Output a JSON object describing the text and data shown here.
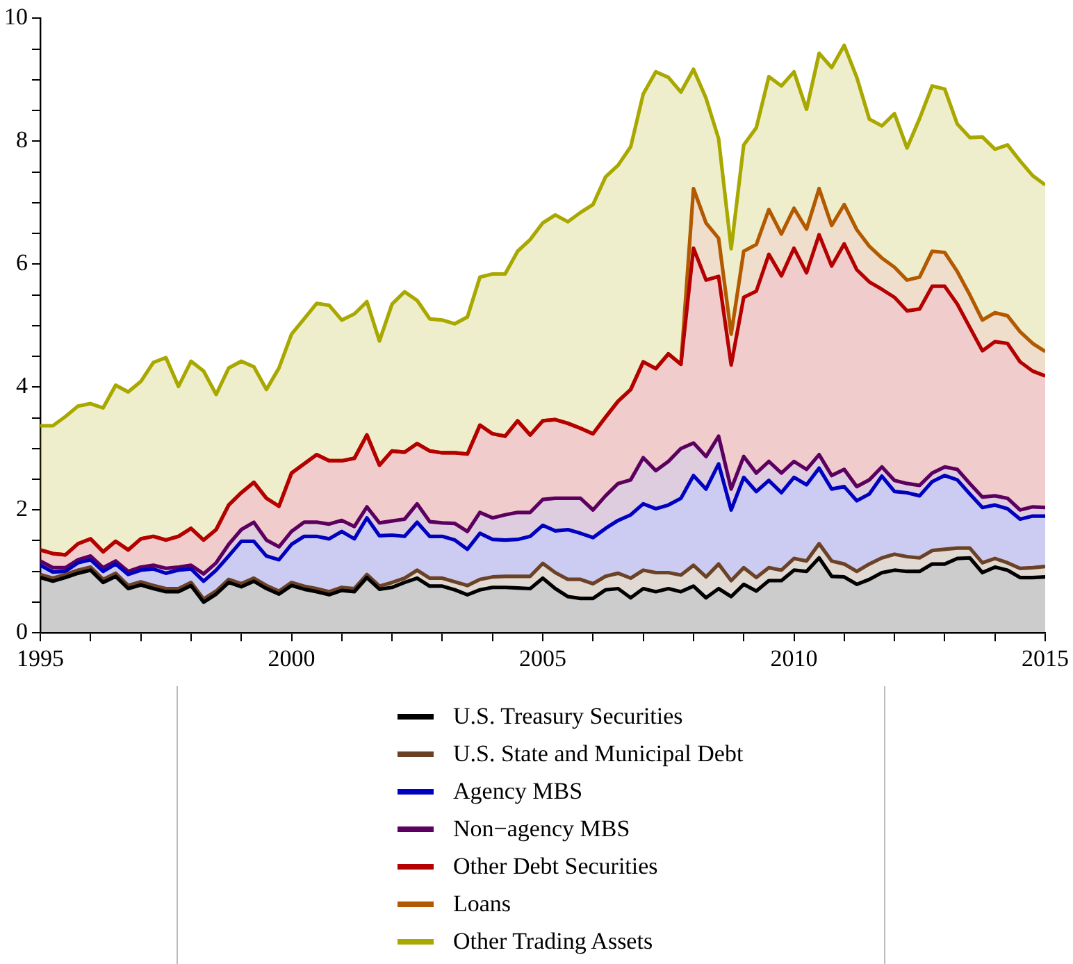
{
  "chart_data": {
    "type": "area",
    "stacked": true,
    "legend": "bottom",
    "grid": false,
    "marker": "none",
    "xlim": [
      1995,
      2015
    ],
    "xticks": [
      1995,
      {
        "value": 1996,
        "label": null
      },
      {
        "value": 1997,
        "label": null
      },
      {
        "value": 1998,
        "label": null
      },
      {
        "value": 1999,
        "label": null
      },
      2000,
      {
        "value": 2001,
        "label": null
      },
      {
        "value": 2002,
        "label": null
      },
      {
        "value": 2003,
        "label": null
      },
      {
        "value": 2004,
        "label": null
      },
      2005,
      {
        "value": 2006,
        "label": null
      },
      {
        "value": 2007,
        "label": null
      },
      {
        "value": 2008,
        "label": null
      },
      {
        "value": 2009,
        "label": null
      },
      2010,
      {
        "value": 2011,
        "label": null
      },
      {
        "value": 2012,
        "label": null
      },
      {
        "value": 2013,
        "label": null
      },
      {
        "value": 2014,
        "label": null
      },
      2015
    ],
    "ylim": [
      0,
      10
    ],
    "yticks": [
      0,
      {
        "value": 0.5,
        "label": null
      },
      {
        "value": 1,
        "label": null
      },
      {
        "value": 1.5,
        "label": null
      },
      2,
      {
        "value": 2.5,
        "label": null
      },
      {
        "value": 3,
        "label": null
      },
      {
        "value": 3.5,
        "label": null
      },
      4,
      {
        "value": 4.5,
        "label": null
      },
      {
        "value": 5,
        "label": null
      },
      {
        "value": 5.5,
        "label": null
      },
      6,
      {
        "value": 6.5,
        "label": null
      },
      {
        "value": 7,
        "label": null
      },
      {
        "value": 7.5,
        "label": null
      },
      8,
      {
        "value": 8.5,
        "label": null
      },
      {
        "value": 9,
        "label": null
      },
      {
        "value": 9.5,
        "label": null
      },
      10
    ],
    "x": [
      1995,
      1995.25,
      1995.5,
      1995.75,
      1996,
      1996.25,
      1996.5,
      1996.75,
      1997,
      1997.25,
      1997.5,
      1997.75,
      1998,
      1998.25,
      1998.5,
      1998.75,
      1999,
      1999.25,
      1999.5,
      1999.75,
      2000,
      2000.25,
      2000.5,
      2000.75,
      2001,
      2001.25,
      2001.5,
      2001.75,
      2002,
      2002.25,
      2002.5,
      2002.75,
      2003,
      2003.25,
      2003.5,
      2003.75,
      2004,
      2004.25,
      2004.5,
      2004.75,
      2005,
      2005.25,
      2005.5,
      2005.75,
      2006,
      2006.25,
      2006.5,
      2006.75,
      2007,
      2007.25,
      2007.5,
      2007.75,
      2008,
      2008.25,
      2008.5,
      2008.75,
      2009,
      2009.25,
      2009.5,
      2009.75,
      2010,
      2010.25,
      2010.5,
      2010.75,
      2011,
      2011.25,
      2011.5,
      2011.75,
      2012,
      2012.25,
      2012.5,
      2012.75,
      2013,
      2013.25,
      2013.5,
      2013.75,
      2014,
      2014.25,
      2014.5,
      2014.75,
      2015
    ],
    "series": [
      {
        "name": "U.S. Treasury Securities",
        "color": "#000000",
        "values": [
          0.9,
          0.84,
          0.9,
          0.97,
          1.02,
          0.82,
          0.92,
          0.72,
          0.78,
          0.72,
          0.67,
          0.67,
          0.77,
          0.5,
          0.63,
          0.82,
          0.75,
          0.84,
          0.72,
          0.63,
          0.77,
          0.71,
          0.67,
          0.62,
          0.69,
          0.67,
          0.9,
          0.71,
          0.74,
          0.82,
          0.89,
          0.76,
          0.76,
          0.7,
          0.62,
          0.7,
          0.74,
          0.74,
          0.73,
          0.72,
          0.89,
          0.72,
          0.59,
          0.56,
          0.56,
          0.7,
          0.72,
          0.57,
          0.72,
          0.67,
          0.72,
          0.67,
          0.76,
          0.57,
          0.72,
          0.59,
          0.79,
          0.68,
          0.85,
          0.85,
          1.02,
          1.0,
          1.22,
          0.92,
          0.91,
          0.79,
          0.87,
          0.98,
          1.02,
          1.0,
          1.0,
          1.12,
          1.12,
          1.21,
          1.22,
          0.98,
          1.07,
          1.02,
          0.9,
          0.9,
          0.91
        ]
      },
      {
        "name": "U.S. State and Municipal Debt",
        "color": "#6b4226",
        "values": [
          0.05,
          0.05,
          0.05,
          0.05,
          0.05,
          0.05,
          0.05,
          0.05,
          0.05,
          0.05,
          0.05,
          0.05,
          0.05,
          0.05,
          0.05,
          0.05,
          0.05,
          0.05,
          0.05,
          0.05,
          0.05,
          0.05,
          0.05,
          0.05,
          0.05,
          0.05,
          0.05,
          0.05,
          0.08,
          0.07,
          0.13,
          0.13,
          0.13,
          0.13,
          0.15,
          0.17,
          0.17,
          0.18,
          0.19,
          0.2,
          0.24,
          0.26,
          0.28,
          0.31,
          0.24,
          0.22,
          0.25,
          0.32,
          0.3,
          0.31,
          0.26,
          0.27,
          0.34,
          0.34,
          0.4,
          0.26,
          0.27,
          0.22,
          0.21,
          0.17,
          0.19,
          0.17,
          0.23,
          0.25,
          0.21,
          0.21,
          0.25,
          0.24,
          0.26,
          0.24,
          0.22,
          0.22,
          0.24,
          0.17,
          0.16,
          0.16,
          0.14,
          0.12,
          0.15,
          0.16,
          0.17
        ]
      },
      {
        "name": "Agency MBS",
        "color": "#0000c0",
        "values": [
          0.15,
          0.1,
          0.05,
          0.12,
          0.12,
          0.13,
          0.15,
          0.18,
          0.19,
          0.27,
          0.25,
          0.3,
          0.22,
          0.29,
          0.34,
          0.38,
          0.69,
          0.6,
          0.48,
          0.51,
          0.62,
          0.81,
          0.85,
          0.86,
          0.91,
          0.81,
          0.92,
          0.82,
          0.77,
          0.68,
          0.78,
          0.68,
          0.68,
          0.68,
          0.59,
          0.75,
          0.61,
          0.59,
          0.6,
          0.65,
          0.62,
          0.68,
          0.81,
          0.75,
          0.75,
          0.78,
          0.86,
          1.03,
          1.08,
          1.04,
          1.1,
          1.25,
          1.46,
          1.43,
          1.63,
          1.15,
          1.47,
          1.4,
          1.42,
          1.26,
          1.32,
          1.24,
          1.23,
          1.17,
          1.26,
          1.15,
          1.14,
          1.33,
          1.02,
          1.04,
          1.01,
          1.12,
          1.2,
          1.11,
          0.88,
          0.9,
          0.87,
          0.88,
          0.8,
          0.84,
          0.82
        ]
      },
      {
        "name": "Non−agency MBS",
        "color": "#5c0060",
        "values": [
          0.07,
          0.07,
          0.06,
          0.05,
          0.06,
          0.06,
          0.05,
          0.05,
          0.05,
          0.06,
          0.08,
          0.05,
          0.06,
          0.12,
          0.12,
          0.19,
          0.19,
          0.31,
          0.26,
          0.21,
          0.21,
          0.23,
          0.23,
          0.24,
          0.18,
          0.2,
          0.18,
          0.21,
          0.23,
          0.28,
          0.3,
          0.24,
          0.22,
          0.27,
          0.29,
          0.34,
          0.35,
          0.41,
          0.44,
          0.39,
          0.42,
          0.53,
          0.51,
          0.57,
          0.45,
          0.53,
          0.6,
          0.57,
          0.75,
          0.62,
          0.71,
          0.81,
          0.53,
          0.53,
          0.45,
          0.34,
          0.34,
          0.3,
          0.31,
          0.32,
          0.26,
          0.25,
          0.22,
          0.22,
          0.28,
          0.23,
          0.23,
          0.15,
          0.18,
          0.15,
          0.17,
          0.14,
          0.14,
          0.17,
          0.17,
          0.17,
          0.15,
          0.17,
          0.15,
          0.15,
          0.14
        ]
      },
      {
        "name": "Other Debt Securities",
        "color": "#b40000",
        "values": [
          0.18,
          0.23,
          0.21,
          0.26,
          0.28,
          0.26,
          0.32,
          0.35,
          0.46,
          0.47,
          0.46,
          0.5,
          0.6,
          0.55,
          0.54,
          0.64,
          0.6,
          0.65,
          0.68,
          0.66,
          0.95,
          0.95,
          1.1,
          1.03,
          0.97,
          1.11,
          1.17,
          0.94,
          1.14,
          1.09,
          0.98,
          1.15,
          1.14,
          1.15,
          1.26,
          1.42,
          1.37,
          1.28,
          1.49,
          1.26,
          1.28,
          1.28,
          1.22,
          1.14,
          1.24,
          1.28,
          1.34,
          1.47,
          1.56,
          1.66,
          1.75,
          1.37,
          3.17,
          2.87,
          2.6,
          2.02,
          2.59,
          2.96,
          3.37,
          3.21,
          3.47,
          3.2,
          3.58,
          3.41,
          3.67,
          3.53,
          3.22,
          2.89,
          2.98,
          2.81,
          2.87,
          3.04,
          2.94,
          2.69,
          2.54,
          2.38,
          2.51,
          2.52,
          2.41,
          2.21,
          2.14
        ]
      },
      {
        "name": "Loans",
        "color": "#b35900",
        "values": [
          0,
          0,
          0,
          0,
          0,
          0,
          0,
          0,
          0,
          0,
          0,
          0,
          0,
          0,
          0,
          0,
          0,
          0,
          0,
          0,
          0,
          0,
          0,
          0,
          0,
          0,
          0,
          0,
          0,
          0,
          0,
          0,
          0,
          0,
          0,
          0,
          0,
          0,
          0,
          0,
          0,
          0,
          0,
          0,
          0,
          0,
          0,
          0,
          0,
          0,
          0,
          0,
          0.97,
          0.93,
          0.62,
          0.5,
          0.75,
          0.76,
          0.73,
          0.68,
          0.65,
          0.71,
          0.75,
          0.66,
          0.64,
          0.65,
          0.58,
          0.51,
          0.49,
          0.5,
          0.52,
          0.57,
          0.55,
          0.53,
          0.53,
          0.5,
          0.47,
          0.45,
          0.49,
          0.45,
          0.4
        ]
      },
      {
        "name": "Other Trading Assets",
        "color": "#a8a800",
        "values": [
          2.02,
          2.08,
          2.25,
          2.24,
          2.2,
          2.34,
          2.54,
          2.57,
          2.56,
          2.83,
          2.97,
          2.44,
          2.72,
          2.75,
          2.2,
          2.23,
          2.14,
          1.88,
          1.77,
          2.25,
          2.26,
          2.36,
          2.46,
          2.53,
          2.29,
          2.35,
          2.17,
          2.02,
          2.39,
          2.61,
          2.33,
          2.15,
          2.16,
          2.1,
          2.23,
          2.41,
          2.6,
          2.64,
          2.76,
          3.18,
          3.22,
          3.33,
          3.28,
          3.51,
          3.73,
          3.91,
          3.84,
          3.95,
          4.36,
          4.83,
          4.5,
          4.43,
          1.94,
          2.03,
          1.62,
          1.39,
          1.73,
          1.9,
          2.16,
          2.41,
          2.22,
          1.95,
          2.2,
          2.57,
          2.59,
          2.48,
          2.07,
          2.15,
          2.5,
          2.15,
          2.58,
          2.69,
          2.66,
          2.4,
          2.56,
          2.98,
          2.66,
          2.78,
          2.78,
          2.73,
          2.71
        ]
      }
    ]
  }
}
